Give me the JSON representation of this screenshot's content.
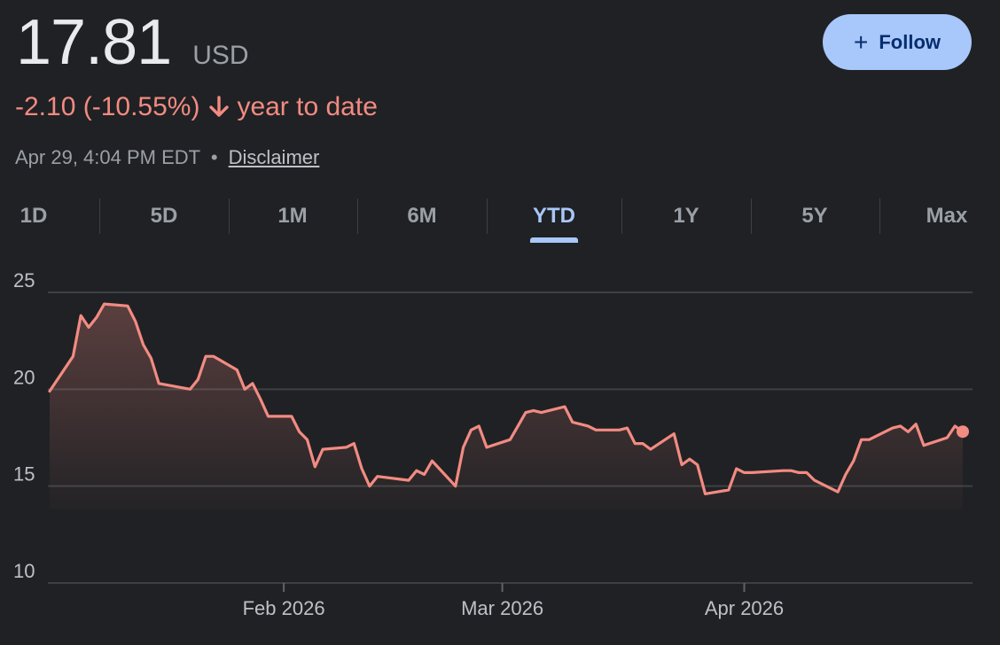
{
  "quote": {
    "price": "17.81",
    "currency": "USD",
    "change": "-2.10 (-10.55%)",
    "period": "year to date",
    "timestamp": "Apr 29, 4:04 PM EDT",
    "separator": "•",
    "disclaimer": "Disclaimer"
  },
  "follow_button": {
    "label": "Follow",
    "icon": "plus-icon"
  },
  "tabs": [
    {
      "label": "1D"
    },
    {
      "label": "5D"
    },
    {
      "label": "1M"
    },
    {
      "label": "6M"
    },
    {
      "label": "YTD"
    },
    {
      "label": "1Y"
    },
    {
      "label": "5Y"
    },
    {
      "label": "Max"
    }
  ],
  "active_tab": "YTD",
  "colors": {
    "background": "#202124",
    "line": "#f28b82",
    "accent": "#a8c7fa",
    "negative": "#f28b82"
  },
  "chart_data": {
    "type": "area",
    "ylim": [
      10,
      25
    ],
    "yticks": [
      25,
      20,
      15,
      10
    ],
    "xticks": [
      {
        "label": "Feb 2026",
        "date": "2026-02-01"
      },
      {
        "label": "Mar 2026",
        "date": "2026-03-01"
      },
      {
        "label": "Apr 2026",
        "date": "2026-04-01"
      }
    ],
    "grid": true,
    "x": [
      "2026-01-02",
      "2026-01-05",
      "2026-01-06",
      "2026-01-07",
      "2026-01-08",
      "2026-01-09",
      "2026-01-12",
      "2026-01-13",
      "2026-01-14",
      "2026-01-15",
      "2026-01-16",
      "2026-01-20",
      "2026-01-21",
      "2026-01-22",
      "2026-01-23",
      "2026-01-26",
      "2026-01-27",
      "2026-01-28",
      "2026-01-29",
      "2026-01-30",
      "2026-02-02",
      "2026-02-03",
      "2026-02-04",
      "2026-02-05",
      "2026-02-06",
      "2026-02-09",
      "2026-02-10",
      "2026-02-11",
      "2026-02-12",
      "2026-02-13",
      "2026-02-17",
      "2026-02-18",
      "2026-02-19",
      "2026-02-20",
      "2026-02-23",
      "2026-02-24",
      "2026-02-25",
      "2026-02-26",
      "2026-02-27",
      "2026-03-02",
      "2026-03-03",
      "2026-03-04",
      "2026-03-05",
      "2026-03-06",
      "2026-03-09",
      "2026-03-10",
      "2026-03-11",
      "2026-03-12",
      "2026-03-13",
      "2026-03-16",
      "2026-03-17",
      "2026-03-18",
      "2026-03-19",
      "2026-03-20",
      "2026-03-23",
      "2026-03-24",
      "2026-03-25",
      "2026-03-26",
      "2026-03-27",
      "2026-03-30",
      "2026-03-31",
      "2026-04-01",
      "2026-04-02",
      "2026-04-06",
      "2026-04-07",
      "2026-04-08",
      "2026-04-09",
      "2026-04-10",
      "2026-04-13",
      "2026-04-14",
      "2026-04-15",
      "2026-04-16",
      "2026-04-17",
      "2026-04-20",
      "2026-04-21",
      "2026-04-22",
      "2026-04-23",
      "2026-04-24",
      "2026-04-27",
      "2026-04-28",
      "2026-04-29"
    ],
    "values": [
      19.9,
      21.7,
      23.8,
      23.2,
      23.7,
      24.4,
      24.3,
      23.5,
      22.3,
      21.6,
      20.3,
      20.0,
      20.5,
      21.7,
      21.7,
      21.0,
      20.0,
      20.3,
      19.5,
      18.6,
      18.6,
      17.8,
      17.4,
      16.0,
      16.9,
      17.0,
      17.2,
      15.9,
      15.0,
      15.5,
      15.3,
      15.8,
      15.6,
      16.3,
      15.0,
      17.0,
      17.9,
      18.1,
      17.0,
      17.4,
      18.1,
      18.8,
      18.9,
      18.8,
      19.1,
      18.3,
      18.2,
      18.1,
      17.9,
      17.9,
      18.0,
      17.2,
      17.2,
      16.9,
      17.7,
      16.1,
      16.4,
      16.1,
      14.6,
      14.8,
      15.9,
      15.7,
      15.7,
      15.8,
      15.8,
      15.7,
      15.7,
      15.3,
      14.7,
      15.6,
      16.3,
      17.4,
      17.4,
      18.0,
      18.1,
      17.8,
      18.2,
      17.1,
      17.5,
      18.1,
      17.81
    ]
  }
}
